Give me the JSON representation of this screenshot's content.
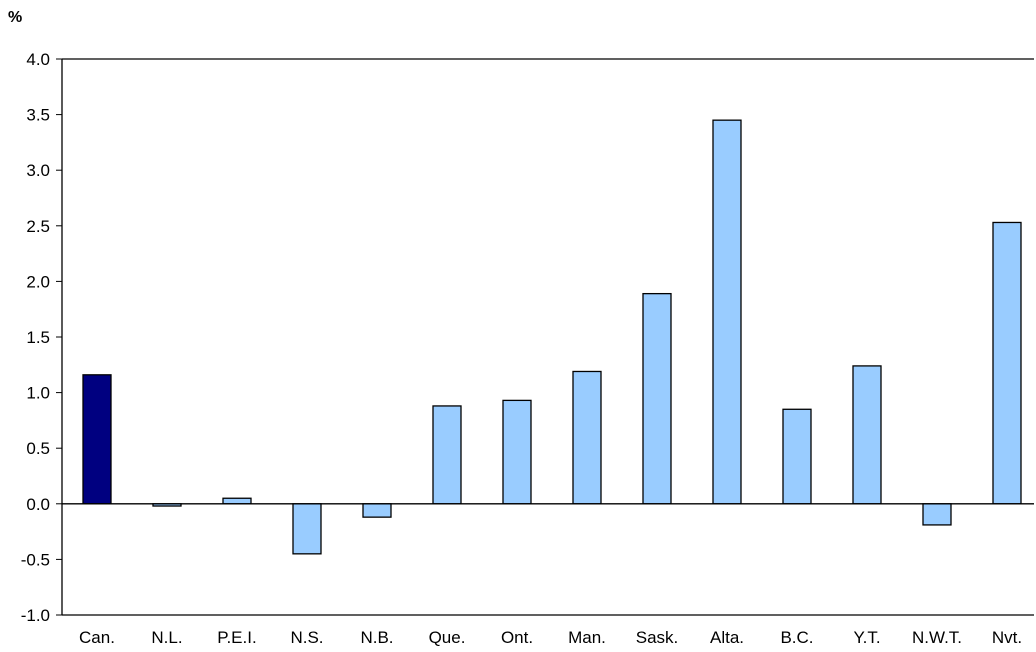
{
  "chart_data": {
    "type": "bar",
    "ylabel": "%",
    "ylim": [
      -1.0,
      4.0
    ],
    "yticks": [
      4.0,
      3.5,
      3.0,
      2.5,
      2.0,
      1.5,
      1.0,
      0.5,
      0.0,
      -0.5,
      -1.0
    ],
    "ytick_labels": [
      "4.0",
      "3.5",
      "3.0",
      "2.5",
      "2.0",
      "1.5",
      "1.0",
      "0.5",
      "0.0",
      "-0.5",
      "-1.0"
    ],
    "categories": [
      "Can.",
      "N.L.",
      "P.E.I.",
      "N.S.",
      "N.B.",
      "Que.",
      "Ont.",
      "Man.",
      "Sask.",
      "Alta.",
      "B.C.",
      "Y.T.",
      "N.W.T.",
      "Nvt."
    ],
    "values": [
      1.16,
      -0.02,
      0.05,
      -0.45,
      -0.12,
      0.88,
      0.93,
      1.19,
      1.89,
      3.45,
      0.85,
      1.24,
      -0.19,
      2.53
    ],
    "highlight_category": "Can.",
    "grid": false,
    "colors": {
      "highlight": "#000080",
      "bar": "#99CCFF",
      "outline": "#000000"
    }
  }
}
